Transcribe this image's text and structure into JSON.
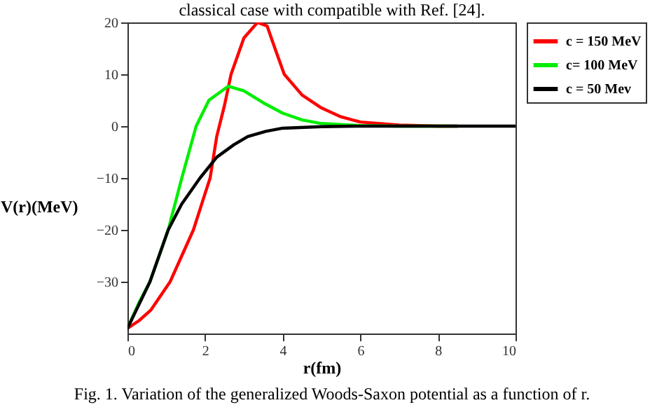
{
  "chart_data": {
    "type": "line",
    "xlabel": "r(fm)",
    "ylabel": "V(r)(MeV)",
    "xlim": [
      0,
      10
    ],
    "ylim": [
      -40,
      20
    ],
    "xticks": [
      0,
      2,
      4,
      6,
      8,
      10
    ],
    "yticks": [
      -30,
      -20,
      -10,
      0,
      10,
      20
    ],
    "grid": false,
    "legend": "right",
    "line_style": "solid",
    "marker": "none",
    "annotations": [
      "classical case with compatible with Ref. [24].",
      "Fig. 1. Variation of the generalized Woods-Saxon potential as a function of r."
    ],
    "series": [
      {
        "name": "c = 150 MeV",
        "color": "#ff0000",
        "x": [
          0,
          0.3,
          0.6,
          1.1,
          1.4,
          1.7,
          2.0,
          2.13,
          2.3,
          2.5,
          2.67,
          3.0,
          3.35,
          3.6,
          3.8,
          4.04,
          4.5,
          5.0,
          5.5,
          6.0,
          7.0,
          8.0,
          8.5
        ],
        "values": [
          -39,
          -37.5,
          -35.5,
          -30,
          -25,
          -20,
          -13,
          -10,
          -2,
          4,
          10,
          17,
          20,
          19.3,
          15,
          10,
          6,
          3.5,
          1.8,
          0.8,
          0.2,
          0,
          0
        ]
      },
      {
        "name": "c= 100 MeV",
        "color": "#00ee00",
        "x": [
          0,
          0.3,
          0.58,
          1.05,
          1.4,
          1.77,
          2.1,
          2.6,
          3.0,
          3.5,
          4.0,
          4.5,
          5.0,
          6.0,
          7.0,
          8.5
        ],
        "values": [
          -39,
          -34,
          -30,
          -20,
          -10,
          0,
          5,
          7.7,
          6.8,
          4.5,
          2.5,
          1.2,
          0.5,
          0.1,
          0,
          0
        ]
      },
      {
        "name": "c = 50 Mev",
        "color": "#000000",
        "x": [
          0,
          0.58,
          1.05,
          1.4,
          1.87,
          2.3,
          2.74,
          3.1,
          3.57,
          4.0,
          5.0,
          6.0,
          8.0,
          10.0
        ],
        "values": [
          -39,
          -30,
          -20,
          -15,
          -10,
          -6,
          -3.6,
          -2,
          -1,
          -0.4,
          -0.1,
          0,
          0,
          0
        ]
      }
    ]
  }
}
